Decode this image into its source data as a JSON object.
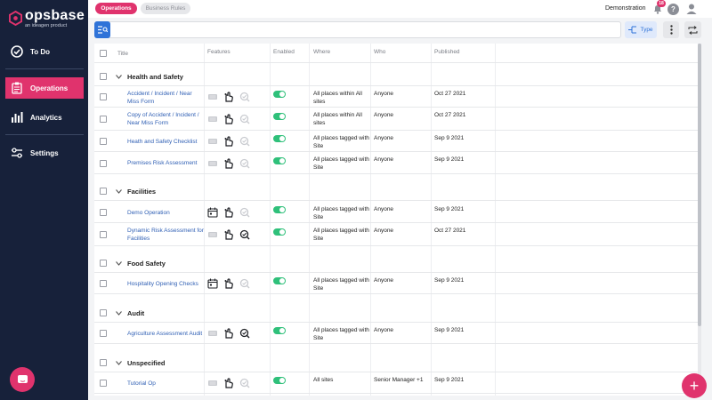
{
  "brand": {
    "name": "opsbase",
    "tagline": "an ideagen product"
  },
  "sidebar": {
    "items": [
      {
        "label": "To Do",
        "icon": "check-circle-icon",
        "active": false
      },
      {
        "label": "Operations",
        "icon": "clipboard-icon",
        "active": true
      },
      {
        "label": "Analytics",
        "icon": "bar-chart-icon",
        "active": false
      },
      {
        "label": "Settings",
        "icon": "sliders-icon",
        "active": false
      }
    ]
  },
  "topbar": {
    "tabs": [
      {
        "label": "Operations",
        "active": true
      },
      {
        "label": "Business Rules",
        "active": false
      }
    ],
    "organisation": "Demonstration",
    "notification_count": "18",
    "help_label": "?"
  },
  "toolbar": {
    "type_label": "Type"
  },
  "table": {
    "columns": [
      "Title",
      "Features",
      "Enabled",
      "Where",
      "Who",
      "Published"
    ],
    "groups": [
      {
        "name": "Health and Safety",
        "rows": [
          {
            "title": "Accident / Incident / Near Miss Form",
            "features": [
              "form-icon-faded",
              "hand-icon",
              "verify-icon-faded"
            ],
            "enabled": true,
            "where": "All places within All sites",
            "who": "Anyone",
            "published": "Oct 27 2021"
          },
          {
            "title": "Copy of Accident / Incident / Near Miss Form",
            "features": [
              "form-icon-faded",
              "hand-icon",
              "verify-icon-faded"
            ],
            "enabled": true,
            "where": "All places within All sites",
            "who": "Anyone",
            "published": "Oct 27 2021"
          },
          {
            "title": "Heath and Safety Checklist",
            "features": [
              "form-icon-faded",
              "hand-icon",
              "verify-icon-faded"
            ],
            "enabled": true,
            "where": "All places tagged with Site",
            "who": "Anyone",
            "published": "Sep 9 2021"
          },
          {
            "title": "Premises Risk Assessment",
            "features": [
              "form-icon-faded",
              "hand-icon",
              "verify-icon-faded"
            ],
            "enabled": true,
            "where": "All places tagged with Site",
            "who": "Anyone",
            "published": "Sep 9 2021"
          }
        ]
      },
      {
        "name": "Facilities",
        "rows": [
          {
            "title": "Demo Operation",
            "features": [
              "calendar-icon",
              "hand-icon",
              "verify-icon-faded"
            ],
            "enabled": true,
            "where": "All places tagged with Site",
            "who": "Anyone",
            "published": "Sep 9 2021"
          },
          {
            "title": "Dynamic Risk Assessment for Facilities",
            "features": [
              "form-icon-faded",
              "hand-icon",
              "verify-icon"
            ],
            "enabled": true,
            "where": "All places tagged with Site",
            "who": "Anyone",
            "published": "Oct 27 2021"
          }
        ]
      },
      {
        "name": "Food Safety",
        "rows": [
          {
            "title": "Hospitality Opening Checks",
            "features": [
              "calendar-icon",
              "hand-icon",
              "verify-icon-faded"
            ],
            "enabled": true,
            "where": "All places tagged with Site",
            "who": "Anyone",
            "published": "Sep 9 2021"
          }
        ]
      },
      {
        "name": "Audit",
        "rows": [
          {
            "title": "Agriculture Assessment Audit",
            "features": [
              "form-icon-faded",
              "hand-icon",
              "verify-icon"
            ],
            "enabled": true,
            "where": "All places tagged with Site",
            "who": "Anyone",
            "published": "Sep 9 2021"
          }
        ]
      },
      {
        "name": "Unspecified",
        "rows": [
          {
            "title": "Tutorial Op",
            "features": [
              "form-icon-faded",
              "hand-icon",
              "verify-icon-faded"
            ],
            "enabled": true,
            "where": "All sites",
            "who": "Senior Manager +1",
            "published": "Sep 9 2021"
          }
        ]
      }
    ]
  },
  "colors": {
    "sidebar": "#17213a",
    "accent": "#e0336d",
    "primary": "#2f73d8",
    "toggle_on": "#2fc07a",
    "link": "#2f5fb4"
  },
  "add_button_label": "+"
}
